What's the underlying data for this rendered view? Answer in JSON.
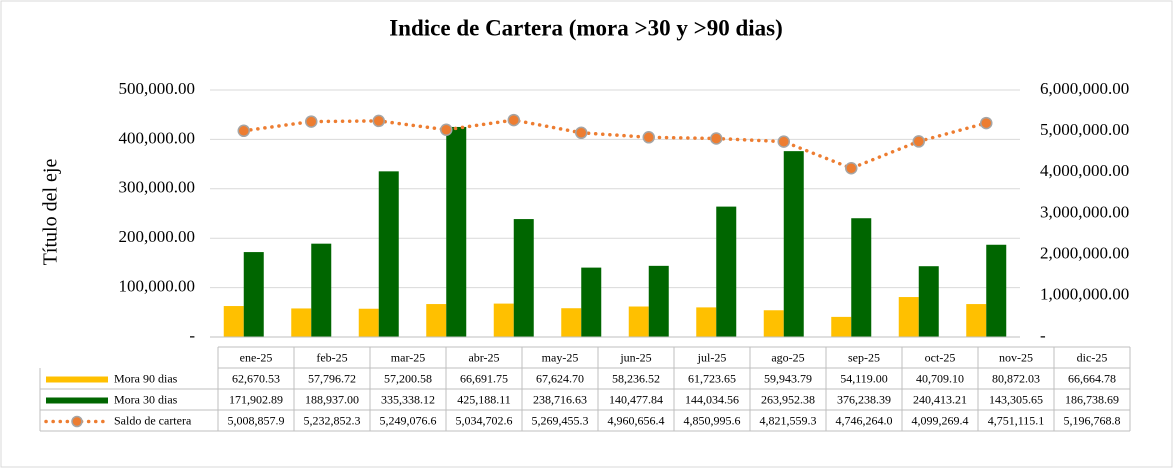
{
  "chart_data": {
    "type": "bar",
    "title": "Indice de Cartera (mora >30 y >90 dias)",
    "y_label": "Título del eje",
    "categories": [
      "ene-25",
      "feb-25",
      "mar-25",
      "abr-25",
      "may-25",
      "jun-25",
      "jul-25",
      "ago-25",
      "sep-25",
      "oct-25",
      "nov-25",
      "dic-25"
    ],
    "series": [
      {
        "name": "Mora 90 dias",
        "color": "#FFC000",
        "values": [
          62670.53,
          57796.72,
          57200.58,
          66691.75,
          67624.7,
          58236.52,
          61723.65,
          59943.79,
          54119.0,
          40709.1,
          80872.03,
          66664.78
        ],
        "value_labels": [
          "62,670.53",
          "57,796.72",
          "57,200.58",
          "66,691.75",
          "67,624.70",
          "58,236.52",
          "61,723.65",
          "59,943.79",
          "54,119.00",
          "40,709.10",
          "80,872.03",
          "66,664.78"
        ]
      },
      {
        "name": "Mora 30 dias",
        "color": "#006600",
        "values": [
          171902.89,
          188937.0,
          335338.12,
          425188.11,
          238716.63,
          140477.84,
          144034.56,
          263952.38,
          376238.39,
          240413.21,
          143305.65,
          186738.69
        ],
        "value_labels": [
          "171,902.89",
          "188,937.00",
          "335,338.12",
          "425,188.11",
          "238,716.63",
          "140,477.84",
          "144,034.56",
          "263,952.38",
          "376,238.39",
          "240,413.21",
          "143,305.65",
          "186,738.69"
        ]
      },
      {
        "name": "Saldo de cartera",
        "color": "#ED7D31",
        "type": "line",
        "axis": "y2",
        "values": [
          5008857.9,
          5232852.3,
          5249076.6,
          5034702.6,
          5269455.3,
          4960656.4,
          4850995.6,
          4821559.3,
          4746264.0,
          4099269.4,
          4751115.1,
          5196768.8
        ],
        "value_labels": [
          "5,008,857.9",
          "5,232,852.3",
          "5,249,076.6",
          "5,034,702.6",
          "5,269,455.3",
          "4,960,656.4",
          "4,850,995.6",
          "4,821,559.3",
          "4,746,264.0",
          "4,099,269.4",
          "4,751,115.1",
          "5,196,768.8"
        ]
      }
    ],
    "ylim": [
      0,
      500000
    ],
    "yticks": [
      {
        "value": 0,
        "label": "-"
      },
      {
        "value": 100000,
        "label": "100,000.00"
      },
      {
        "value": 200000,
        "label": "200,000.00"
      },
      {
        "value": 300000,
        "label": "300,000.00"
      },
      {
        "value": 400000,
        "label": "400,000.00"
      },
      {
        "value": 500000,
        "label": "500,000.00"
      }
    ],
    "y2lim": [
      0,
      6000000
    ],
    "y2ticks": [
      {
        "value": 0,
        "label": "-"
      },
      {
        "value": 1000000,
        "label": "1,000,000.00"
      },
      {
        "value": 2000000,
        "label": "2,000,000.00"
      },
      {
        "value": 3000000,
        "label": "3,000,000.00"
      },
      {
        "value": 4000000,
        "label": "4,000,000.00"
      },
      {
        "value": 5000000,
        "label": "5,000,000.00"
      },
      {
        "value": 6000000,
        "label": "6,000,000.00"
      }
    ],
    "grid": true
  }
}
